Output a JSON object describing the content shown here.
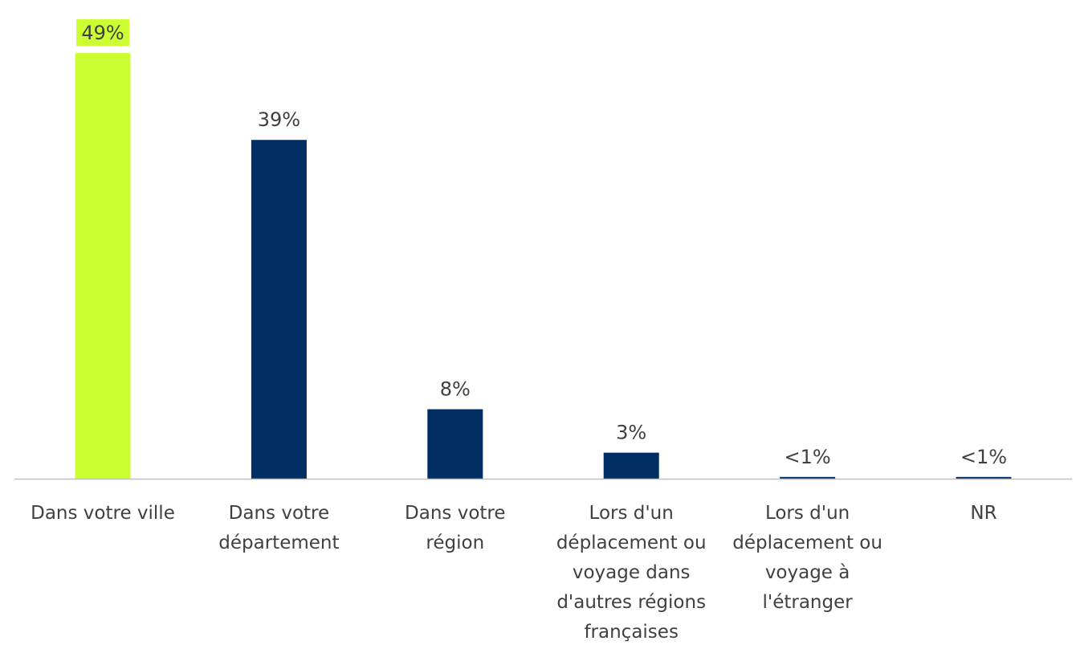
{
  "chart_data": {
    "type": "bar",
    "categories": [
      "Dans votre ville",
      "Dans votre département",
      "Dans votre région",
      "Lors d'un déplacement ou voyage dans d'autres régions françaises",
      "Lors d'un déplacement ou voyage à l'étranger",
      "NR"
    ],
    "category_lines": [
      [
        "Dans votre ville"
      ],
      [
        "Dans votre",
        "département"
      ],
      [
        "Dans votre",
        "région"
      ],
      [
        "Lors d'un",
        "déplacement ou",
        "voyage dans",
        "d'autres régions",
        "françaises"
      ],
      [
        "Lors d'un",
        "déplacement ou",
        "voyage à",
        "l'étranger"
      ],
      [
        "NR"
      ]
    ],
    "values": [
      49,
      39,
      8,
      3,
      0.2,
      0.2
    ],
    "value_labels": [
      "49%",
      "39%",
      "8%",
      "3%",
      "<1%",
      "<1%"
    ],
    "bar_colors": [
      "#ccff33",
      "#002d62",
      "#002d62",
      "#002d62",
      "#002d62",
      "#002d62"
    ],
    "highlight_label_bg": [
      "#ccff33",
      null,
      null,
      null,
      null,
      null
    ],
    "axis_color": "#bfbfbf",
    "title": "",
    "xlabel": "",
    "ylabel": "",
    "ylim": [
      0,
      49
    ],
    "grid": false,
    "legend": "none"
  }
}
